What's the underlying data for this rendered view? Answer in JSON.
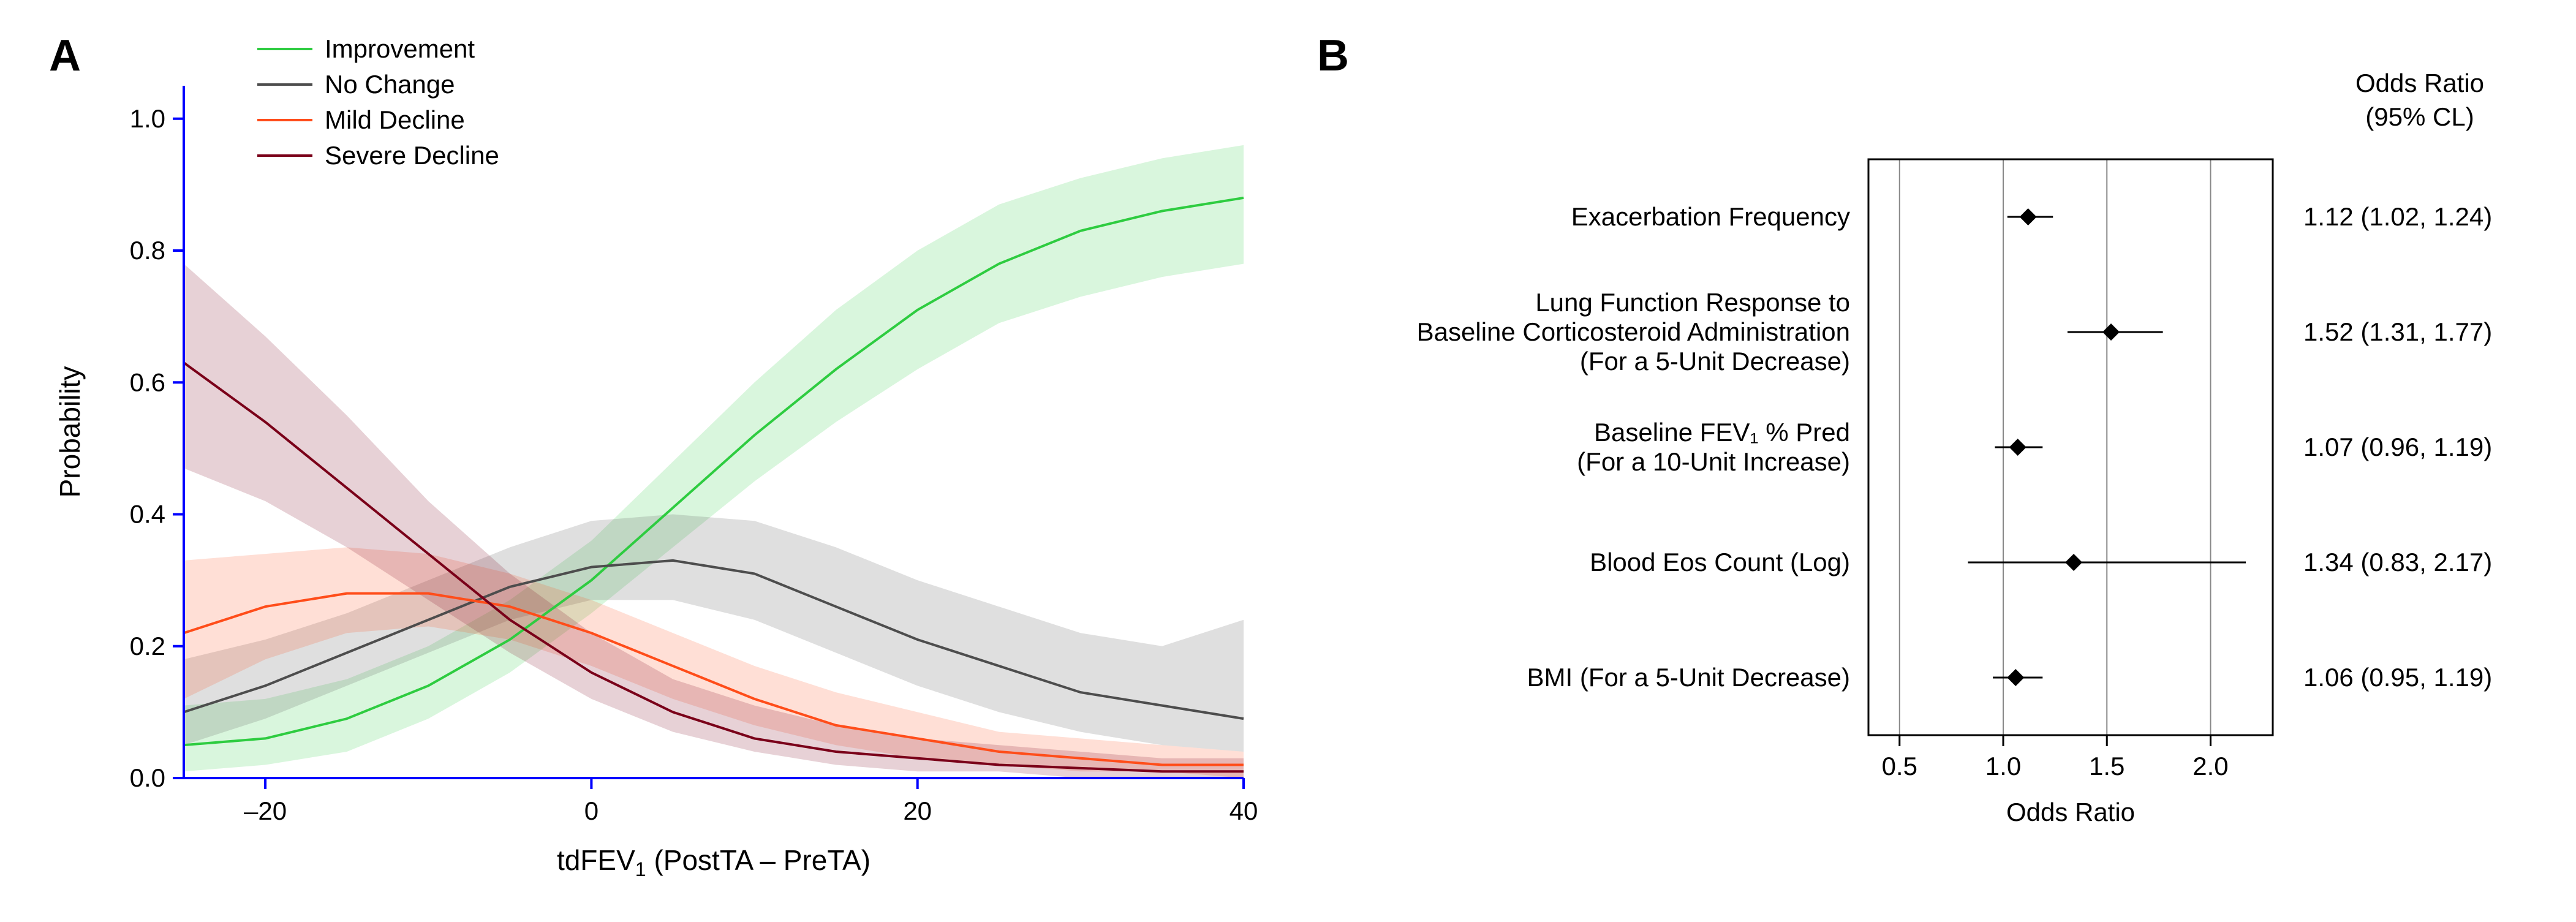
{
  "panel_labels": {
    "A": "A",
    "B": "B"
  },
  "panel_a": {
    "type": "line",
    "title_fontsize": 46,
    "axis_fontsize": 46,
    "tick_fontsize": 42,
    "legend_fontsize": 42,
    "xlabel_prefix": "tdFEV",
    "xlabel_sub": "1",
    "xlabel_suffix": " (PostTA – PreTA)",
    "ylabel": "Probability",
    "xlim": [
      -25,
      40
    ],
    "ylim": [
      0,
      1.05
    ],
    "xticks": [
      -20,
      0,
      20,
      40
    ],
    "yticks": [
      0.0,
      0.2,
      0.4,
      0.6,
      0.8,
      1.0
    ],
    "axis_color": "#0000ff",
    "tick_color": "#0000ff",
    "text_color": "#000000",
    "background_color": "#ffffff",
    "ci_opacity": 0.18,
    "line_width": 4,
    "legend_items": [
      {
        "label": "Improvement",
        "color": "#2ecc40"
      },
      {
        "label": "No Change",
        "color": "#4d4d4d"
      },
      {
        "label": "Mild Decline",
        "color": "#ff4d1a"
      },
      {
        "label": "Severe Decline",
        "color": "#7a0019"
      }
    ],
    "series": [
      {
        "name": "improvement",
        "color": "#2ecc40",
        "points": [
          {
            "x": -25,
            "y": 0.05,
            "lo": 0.01,
            "hi": 0.11
          },
          {
            "x": -20,
            "y": 0.06,
            "lo": 0.02,
            "hi": 0.12
          },
          {
            "x": -15,
            "y": 0.09,
            "lo": 0.04,
            "hi": 0.15
          },
          {
            "x": -10,
            "y": 0.14,
            "lo": 0.09,
            "hi": 0.2
          },
          {
            "x": -5,
            "y": 0.21,
            "lo": 0.16,
            "hi": 0.27
          },
          {
            "x": 0,
            "y": 0.3,
            "lo": 0.25,
            "hi": 0.36
          },
          {
            "x": 5,
            "y": 0.41,
            "lo": 0.35,
            "hi": 0.48
          },
          {
            "x": 10,
            "y": 0.52,
            "lo": 0.45,
            "hi": 0.6
          },
          {
            "x": 15,
            "y": 0.62,
            "lo": 0.54,
            "hi": 0.71
          },
          {
            "x": 20,
            "y": 0.71,
            "lo": 0.62,
            "hi": 0.8
          },
          {
            "x": 25,
            "y": 0.78,
            "lo": 0.69,
            "hi": 0.87
          },
          {
            "x": 30,
            "y": 0.83,
            "lo": 0.73,
            "hi": 0.91
          },
          {
            "x": 35,
            "y": 0.86,
            "lo": 0.76,
            "hi": 0.94
          },
          {
            "x": 40,
            "y": 0.88,
            "lo": 0.78,
            "hi": 0.96
          }
        ]
      },
      {
        "name": "no_change",
        "color": "#4d4d4d",
        "points": [
          {
            "x": -25,
            "y": 0.1,
            "lo": 0.05,
            "hi": 0.18
          },
          {
            "x": -20,
            "y": 0.14,
            "lo": 0.09,
            "hi": 0.21
          },
          {
            "x": -15,
            "y": 0.19,
            "lo": 0.14,
            "hi": 0.25
          },
          {
            "x": -10,
            "y": 0.24,
            "lo": 0.19,
            "hi": 0.3
          },
          {
            "x": -5,
            "y": 0.29,
            "lo": 0.24,
            "hi": 0.35
          },
          {
            "x": 0,
            "y": 0.32,
            "lo": 0.27,
            "hi": 0.39
          },
          {
            "x": 5,
            "y": 0.33,
            "lo": 0.27,
            "hi": 0.4
          },
          {
            "x": 10,
            "y": 0.31,
            "lo": 0.24,
            "hi": 0.39
          },
          {
            "x": 15,
            "y": 0.26,
            "lo": 0.19,
            "hi": 0.35
          },
          {
            "x": 20,
            "y": 0.21,
            "lo": 0.14,
            "hi": 0.3
          },
          {
            "x": 25,
            "y": 0.17,
            "lo": 0.1,
            "hi": 0.26
          },
          {
            "x": 30,
            "y": 0.13,
            "lo": 0.07,
            "hi": 0.22
          },
          {
            "x": 35,
            "y": 0.11,
            "lo": 0.05,
            "hi": 0.2
          },
          {
            "x": 40,
            "y": 0.09,
            "lo": 0.04,
            "hi": 0.24
          }
        ]
      },
      {
        "name": "mild_decline",
        "color": "#ff4d1a",
        "points": [
          {
            "x": -25,
            "y": 0.22,
            "lo": 0.12,
            "hi": 0.33
          },
          {
            "x": -20,
            "y": 0.26,
            "lo": 0.18,
            "hi": 0.34
          },
          {
            "x": -15,
            "y": 0.28,
            "lo": 0.22,
            "hi": 0.35
          },
          {
            "x": -10,
            "y": 0.28,
            "lo": 0.23,
            "hi": 0.34
          },
          {
            "x": -5,
            "y": 0.26,
            "lo": 0.21,
            "hi": 0.31
          },
          {
            "x": 0,
            "y": 0.22,
            "lo": 0.17,
            "hi": 0.27
          },
          {
            "x": 5,
            "y": 0.17,
            "lo": 0.12,
            "hi": 0.22
          },
          {
            "x": 10,
            "y": 0.12,
            "lo": 0.08,
            "hi": 0.17
          },
          {
            "x": 15,
            "y": 0.08,
            "lo": 0.05,
            "hi": 0.13
          },
          {
            "x": 20,
            "y": 0.06,
            "lo": 0.03,
            "hi": 0.1
          },
          {
            "x": 25,
            "y": 0.04,
            "lo": 0.02,
            "hi": 0.07
          },
          {
            "x": 30,
            "y": 0.03,
            "lo": 0.01,
            "hi": 0.06
          },
          {
            "x": 35,
            "y": 0.02,
            "lo": 0.01,
            "hi": 0.05
          },
          {
            "x": 40,
            "y": 0.02,
            "lo": 0.0,
            "hi": 0.04
          }
        ]
      },
      {
        "name": "severe_decline",
        "color": "#7a0019",
        "points": [
          {
            "x": -25,
            "y": 0.63,
            "lo": 0.47,
            "hi": 0.78
          },
          {
            "x": -20,
            "y": 0.54,
            "lo": 0.42,
            "hi": 0.67
          },
          {
            "x": -15,
            "y": 0.44,
            "lo": 0.35,
            "hi": 0.55
          },
          {
            "x": -10,
            "y": 0.34,
            "lo": 0.27,
            "hi": 0.42
          },
          {
            "x": -5,
            "y": 0.24,
            "lo": 0.19,
            "hi": 0.31
          },
          {
            "x": 0,
            "y": 0.16,
            "lo": 0.12,
            "hi": 0.22
          },
          {
            "x": 5,
            "y": 0.1,
            "lo": 0.07,
            "hi": 0.15
          },
          {
            "x": 10,
            "y": 0.06,
            "lo": 0.04,
            "hi": 0.11
          },
          {
            "x": 15,
            "y": 0.04,
            "lo": 0.02,
            "hi": 0.08
          },
          {
            "x": 20,
            "y": 0.03,
            "lo": 0.01,
            "hi": 0.06
          },
          {
            "x": 25,
            "y": 0.02,
            "lo": 0.01,
            "hi": 0.05
          },
          {
            "x": 30,
            "y": 0.015,
            "lo": 0.0,
            "hi": 0.04
          },
          {
            "x": 35,
            "y": 0.01,
            "lo": 0.0,
            "hi": 0.03
          },
          {
            "x": 40,
            "y": 0.01,
            "lo": 0.0,
            "hi": 0.03
          }
        ]
      }
    ]
  },
  "panel_b": {
    "type": "forest",
    "header1": "Odds Ratio",
    "header2": "(95% CL)",
    "xlabel": "Odds Ratio",
    "xticks": [
      0.5,
      1.0,
      1.5,
      2.0
    ],
    "xlim": [
      0.35,
      2.3
    ],
    "text_color": "#000000",
    "grid_color": "#888888",
    "frame_color": "#000000",
    "marker_color": "#000000",
    "marker_size": 14,
    "line_width": 3,
    "label_fontsize": 42,
    "tick_fontsize": 42,
    "header_fontsize": 42,
    "rows": [
      {
        "label_lines": [
          "Exacerbation Frequency"
        ],
        "or": 1.12,
        "lo": 1.02,
        "hi": 1.24,
        "text": "1.12 (1.02, 1.24)"
      },
      {
        "label_lines": [
          "Lung Function Response to",
          "Baseline Corticosteroid Administration",
          "(For a 5-Unit Decrease)"
        ],
        "or": 1.52,
        "lo": 1.31,
        "hi": 1.77,
        "text": "1.52 (1.31, 1.77)"
      },
      {
        "label_lines": [
          "Baseline FEV₁ % Pred",
          "(For a 10-Unit Increase)"
        ],
        "or": 1.07,
        "lo": 0.96,
        "hi": 1.19,
        "text": "1.07 (0.96, 1.19)"
      },
      {
        "label_lines": [
          "Blood Eos Count (Log)"
        ],
        "or": 1.34,
        "lo": 0.83,
        "hi": 2.17,
        "text": "1.34 (0.83, 2.17)"
      },
      {
        "label_lines": [
          "BMI (For a 5-Unit Decrease)"
        ],
        "or": 1.06,
        "lo": 0.95,
        "hi": 1.19,
        "text": "1.06 (0.95, 1.19)"
      }
    ]
  }
}
